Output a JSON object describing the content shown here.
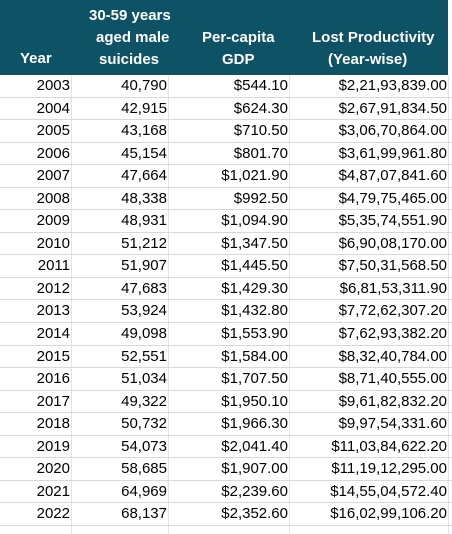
{
  "header": {
    "year": "Year",
    "suicides": [
      "30-59 years",
      "aged male",
      "suicides"
    ],
    "gdp": [
      "Per-capita",
      "GDP"
    ],
    "lost": [
      "Lost Productivity",
      "(Year-wise)"
    ]
  },
  "rows": [
    {
      "year": "2003",
      "suicides": "40,790",
      "gdp": "$544.10",
      "lost": "$2,21,93,839.00"
    },
    {
      "year": "2004",
      "suicides": "42,915",
      "gdp": "$624.30",
      "lost": "$2,67,91,834.50"
    },
    {
      "year": "2005",
      "suicides": "43,168",
      "gdp": "$710.50",
      "lost": "$3,06,70,864.00"
    },
    {
      "year": "2006",
      "suicides": "45,154",
      "gdp": "$801.70",
      "lost": "$3,61,99,961.80"
    },
    {
      "year": "2007",
      "suicides": "47,664",
      "gdp": "$1,021.90",
      "lost": "$4,87,07,841.60"
    },
    {
      "year": "2008",
      "suicides": "48,338",
      "gdp": "$992.50",
      "lost": "$4,79,75,465.00"
    },
    {
      "year": "2009",
      "suicides": "48,931",
      "gdp": "$1,094.90",
      "lost": "$5,35,74,551.90"
    },
    {
      "year": "2010",
      "suicides": "51,212",
      "gdp": "$1,347.50",
      "lost": "$6,90,08,170.00"
    },
    {
      "year": "2011",
      "suicides": "51,907",
      "gdp": "$1,445.50",
      "lost": "$7,50,31,568.50"
    },
    {
      "year": "2012",
      "suicides": "47,683",
      "gdp": "$1,429.30",
      "lost": "$6,81,53,311.90"
    },
    {
      "year": "2013",
      "suicides": "53,924",
      "gdp": "$1,432.80",
      "lost": "$7,72,62,307.20"
    },
    {
      "year": "2014",
      "suicides": "49,098",
      "gdp": "$1,553.90",
      "lost": "$7,62,93,382.20"
    },
    {
      "year": "2015",
      "suicides": "52,551",
      "gdp": "$1,584.00",
      "lost": "$8,32,40,784.00"
    },
    {
      "year": "2016",
      "suicides": "51,034",
      "gdp": "$1,707.50",
      "lost": "$8,71,40,555.00"
    },
    {
      "year": "2017",
      "suicides": "49,322",
      "gdp": "$1,950.10",
      "lost": "$9,61,82,832.20"
    },
    {
      "year": "2018",
      "suicides": "50,732",
      "gdp": "$1,966.30",
      "lost": "$9,97,54,331.60"
    },
    {
      "year": "2019",
      "suicides": "54,073",
      "gdp": "$2,041.40",
      "lost": "$11,03,84,622.20"
    },
    {
      "year": "2020",
      "suicides": "58,685",
      "gdp": "$1,907.00",
      "lost": "$11,19,12,295.00"
    },
    {
      "year": "2021",
      "suicides": "64,969",
      "gdp": "$2,239.60",
      "lost": "$14,55,04,572.40"
    },
    {
      "year": "2022",
      "suicides": "68,137",
      "gdp": "$2,352.60",
      "lost": "$16,02,99,106.20"
    }
  ]
}
